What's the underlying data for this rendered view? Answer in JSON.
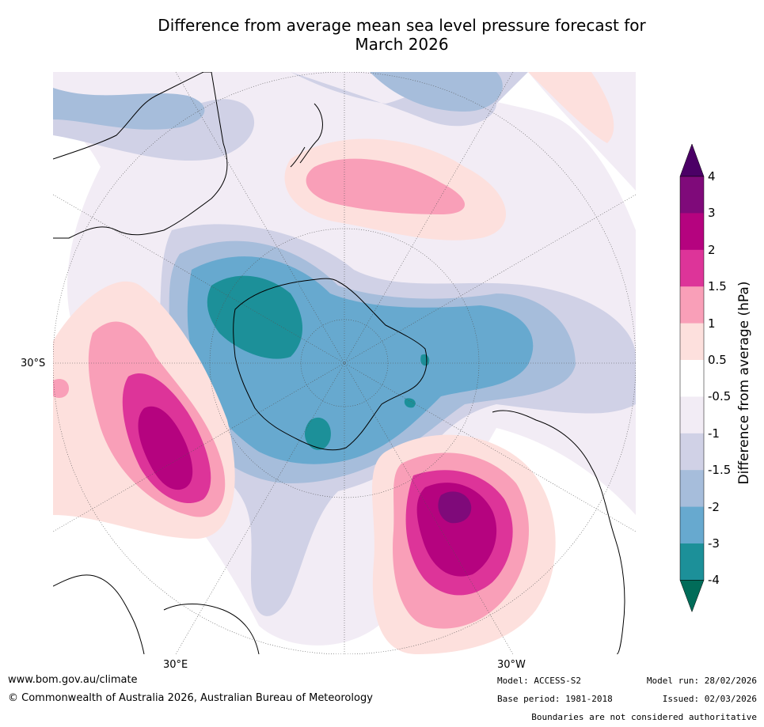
{
  "title": {
    "line1": "Difference from average mean sea level pressure forecast for",
    "line2": "March 2026"
  },
  "map": {
    "projection": "South polar stereographic",
    "lat_label": "30°S",
    "lon_labels": [
      "30°E",
      "30°W"
    ]
  },
  "colorbar": {
    "title": "Difference from average (hPa)",
    "ticks": [
      "4",
      "3",
      "2",
      "1.5",
      "1",
      "0.5",
      "-0.5",
      "-1",
      "-1.5",
      "-2",
      "-3",
      "-4"
    ],
    "colors": {
      "above_4": "#4b0066",
      "3_to_4": "#7f0a7a",
      "2_to_3": "#b5037f",
      "1.5_to_2": "#dd3499",
      "1_to_1.5": "#f99fb8",
      "0.5_to_1": "#fde0dd",
      "-0.5_to_0.5": "#ffffff",
      "-1_to_-0.5": "#f2ecf5",
      "-1.5_to_-1": "#d0d1e6",
      "-2_to_-1.5": "#a6bddb",
      "-3_to_-2": "#67a9cf",
      "-4_to_-3": "#1c9099",
      "below_-4": "#016c59"
    }
  },
  "footer": {
    "url": "www.bom.gov.au/climate",
    "copyright": "© Commonwealth of Australia 2026, Australian Bureau of Meteorology",
    "model": "Model: ACCESS-S2",
    "base_period": "Base period: 1981-2018",
    "model_run": "Model run: 28/02/2026",
    "issued": "Issued: 02/03/2026",
    "disclaimer": "Boundaries are not considered authoritative"
  }
}
